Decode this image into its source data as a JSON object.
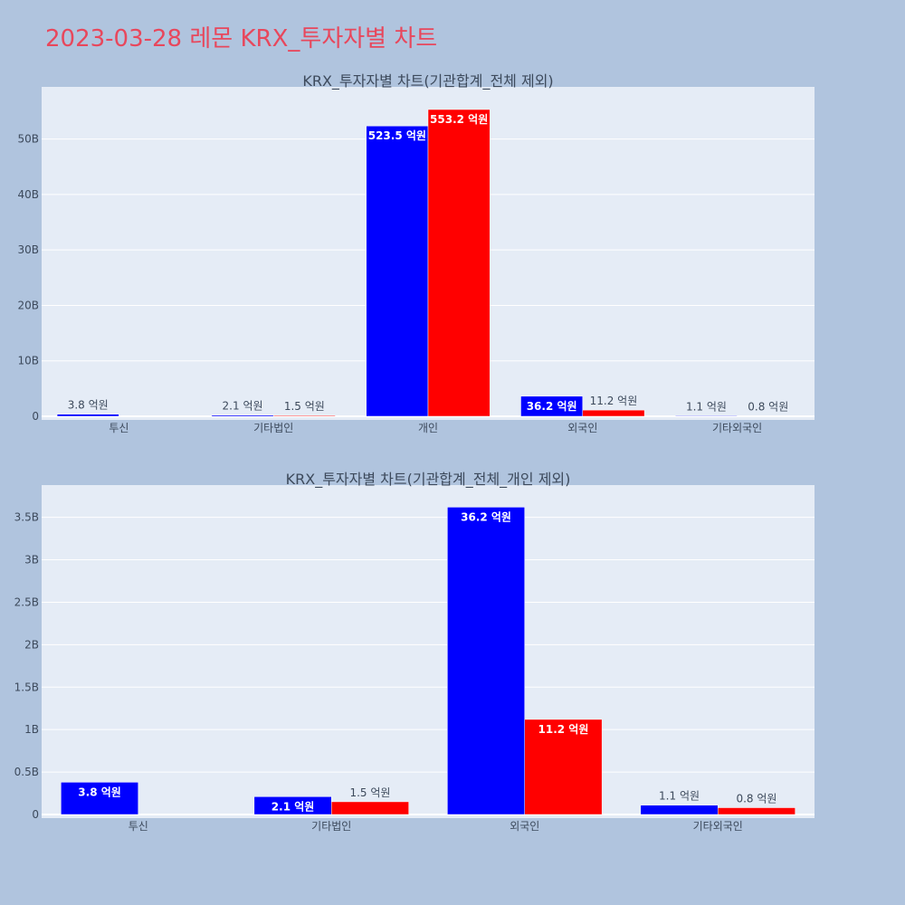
{
  "page_title": "2023-03-28 레몬 KRX_투자자별 차트",
  "chart_data": [
    {
      "type": "bar",
      "title": "KRX_투자자별 차트(기관합계_전체 제외)",
      "categories": [
        "투신",
        "기타법인",
        "개인",
        "외국인",
        "기타외국인"
      ],
      "ylim": [
        0,
        59.4
      ],
      "yticks": [
        0,
        10,
        20,
        30,
        40,
        50
      ],
      "ytick_labels": [
        "0",
        "10B",
        "20B",
        "30B",
        "40B",
        "50B"
      ],
      "series": [
        {
          "color": "#0000ff",
          "values": [
            0.38,
            0.21,
            52.35,
            3.62,
            0.11
          ],
          "labels": [
            "3.8 억원",
            "2.1 억원",
            "523.5 억원",
            "36.2 억원",
            "1.1 억원"
          ]
        },
        {
          "color": "#ff0000",
          "values": [
            0,
            0.15,
            55.32,
            1.12,
            0.08
          ],
          "labels": [
            "",
            "1.5 억원",
            "553.2 억원",
            "11.2 억원",
            "0.8 억원"
          ]
        }
      ]
    },
    {
      "type": "bar",
      "title": "KRX_투자자별 차트(기관합계_전체_개인 제외)",
      "categories": [
        "투신",
        "기타법인",
        "외국인",
        "기타외국인"
      ],
      "ylim": [
        0,
        3.88
      ],
      "yticks": [
        0,
        0.5,
        1,
        1.5,
        2,
        2.5,
        3,
        3.5
      ],
      "ytick_labels": [
        "0",
        "0.5B",
        "1B",
        "1.5B",
        "2B",
        "2.5B",
        "3B",
        "3.5B"
      ],
      "series": [
        {
          "color": "#0000ff",
          "values": [
            0.38,
            0.21,
            3.62,
            0.11
          ],
          "labels": [
            "3.8 억원",
            "2.1 억원",
            "36.2 억원",
            "1.1 억원"
          ]
        },
        {
          "color": "#ff0000",
          "values": [
            0,
            0.15,
            1.12,
            0.08
          ],
          "labels": [
            "",
            "1.5 억원",
            "11.2 억원",
            "0.8 억원"
          ]
        }
      ]
    }
  ]
}
